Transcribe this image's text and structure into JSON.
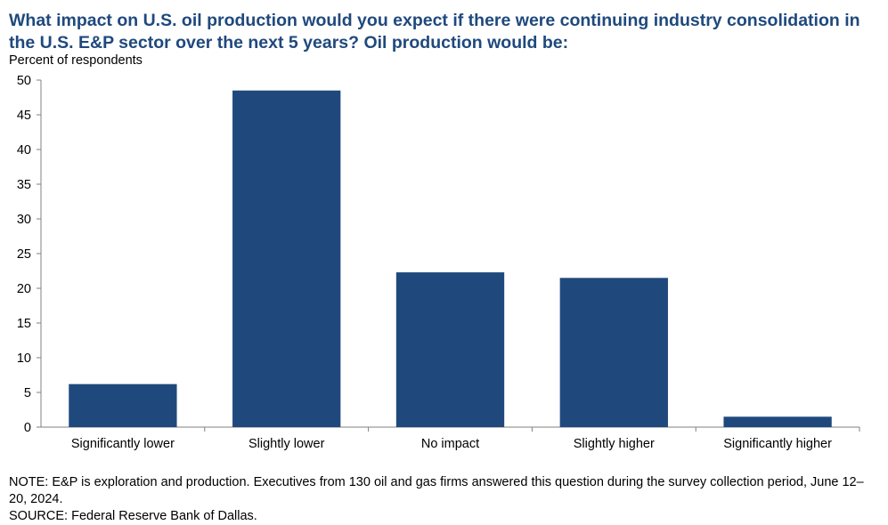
{
  "title": "What impact on U.S. oil production would you expect if there were continuing industry consolidation in the U.S. E&P sector over the next 5 years? Oil production would be:",
  "units_label": "Percent of respondents",
  "note": "NOTE: E&P is exploration and production. Executives from 130 oil and gas firms answered this question during the survey collection period, June 12–20, 2024.",
  "source": "SOURCE: Federal Reserve Bank of Dallas.",
  "colors": {
    "bar": "#1f497d",
    "title": "#1f497d",
    "axis": "#808080"
  },
  "chart_data": {
    "type": "bar",
    "title": "What impact on U.S. oil production would you expect if there were continuing industry consolidation in the U.S. E&P sector over the next 5 years? Oil production would be:",
    "ylabel": "Percent of respondents",
    "xlabel": "",
    "categories": [
      "Significantly lower",
      "Slightly lower",
      "No impact",
      "Slightly higher",
      "Significantly higher"
    ],
    "values": [
      6.2,
      48.5,
      22.3,
      21.5,
      1.5
    ],
    "ylim": [
      0,
      50
    ],
    "yticks": [
      0,
      5,
      10,
      15,
      20,
      25,
      30,
      35,
      40,
      45,
      50
    ],
    "grid": false,
    "legend": "none"
  }
}
